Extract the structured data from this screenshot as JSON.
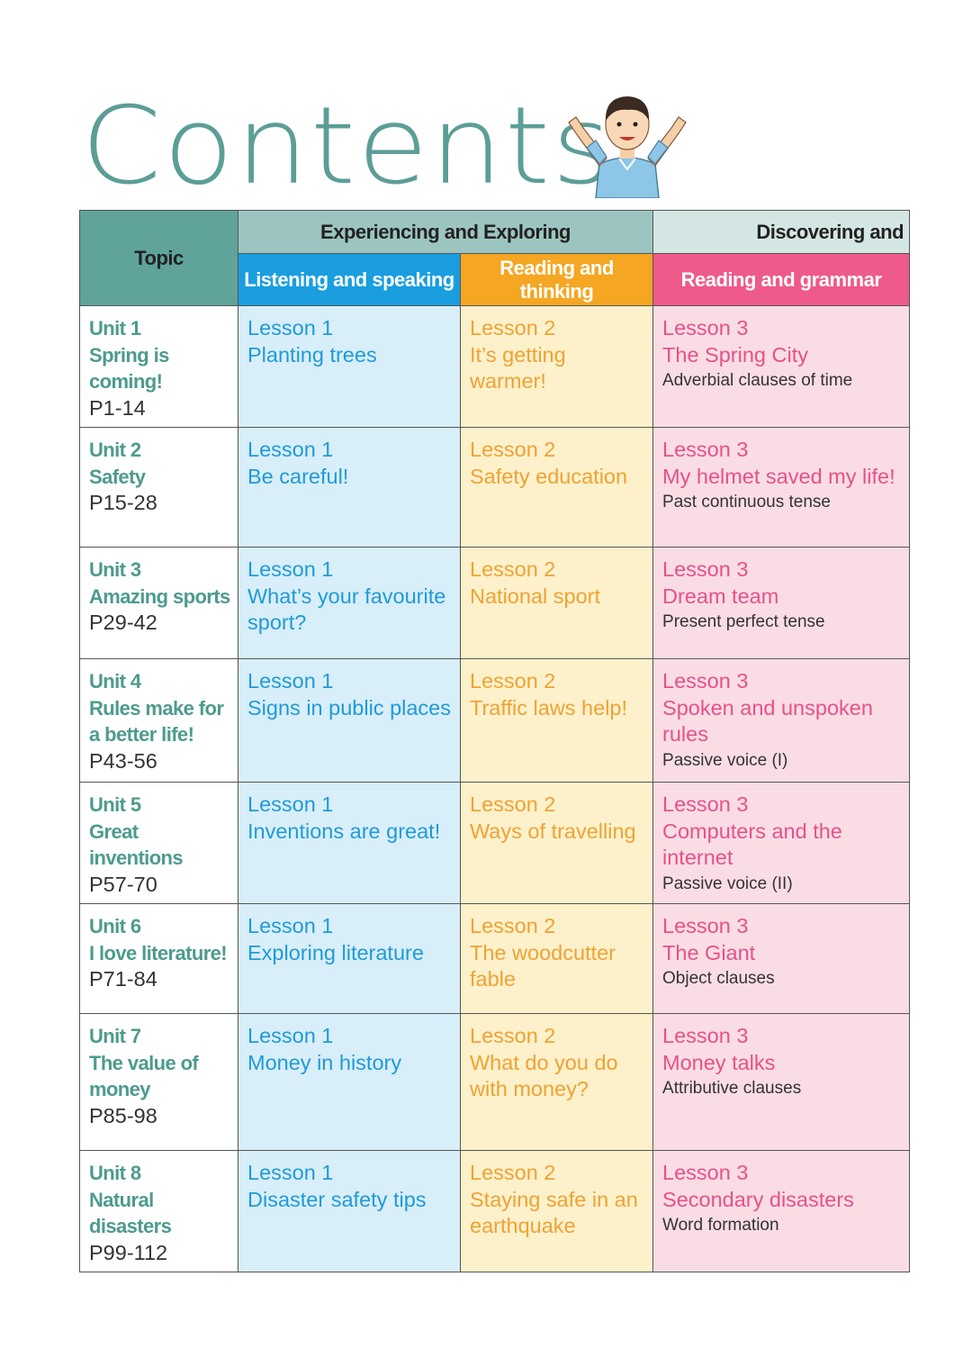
{
  "title": "Contents",
  "table": {
    "header": {
      "topic": "Topic",
      "group1": "Experiencing and Exploring",
      "group2": "Discovering and",
      "columns": [
        "Listening and speaking",
        "Reading and thinking",
        "Reading and grammar"
      ]
    },
    "rows": [
      {
        "unit": "Unit 1",
        "topic": "Spring is coming!",
        "pages": "P1-14",
        "listening": {
          "lesson": "Lesson 1",
          "title": "Planting trees"
        },
        "reading": {
          "lesson": "Lesson 2",
          "title": "It’s getting warmer!"
        },
        "grammar": {
          "lesson": "Lesson 3",
          "title": "The Spring City",
          "note": "Adverbial clauses of time"
        }
      },
      {
        "unit": "Unit 2",
        "topic": "Safety",
        "pages": "P15-28",
        "listening": {
          "lesson": "Lesson 1",
          "title": "Be careful!"
        },
        "reading": {
          "lesson": "Lesson 2",
          "title": "Safety education"
        },
        "grammar": {
          "lesson": "Lesson 3",
          "title": "My helmet saved my life!",
          "note": "Past continuous tense"
        }
      },
      {
        "unit": "Unit 3",
        "topic": "Amazing sports",
        "pages": "P29-42",
        "listening": {
          "lesson": "Lesson 1",
          "title": "What’s your favourite sport?"
        },
        "reading": {
          "lesson": "Lesson 2",
          "title": "National sport"
        },
        "grammar": {
          "lesson": "Lesson 3",
          "title": "Dream team",
          "note": "Present perfect tense"
        }
      },
      {
        "unit": "Unit 4",
        "topic": "Rules make for a better life!",
        "pages": "P43-56",
        "listening": {
          "lesson": "Lesson 1",
          "title": "Signs in public places"
        },
        "reading": {
          "lesson": "Lesson 2",
          "title": "Traffic laws help!"
        },
        "grammar": {
          "lesson": "Lesson 3",
          "title": "Spoken and unspoken rules",
          "note": "Passive voice (I)"
        }
      },
      {
        "unit": "Unit 5",
        "topic": "Great inventions",
        "pages": "P57-70",
        "listening": {
          "lesson": "Lesson 1",
          "title": "Inventions are great!"
        },
        "reading": {
          "lesson": "Lesson 2",
          "title": "Ways of travelling"
        },
        "grammar": {
          "lesson": "Lesson 3",
          "title": "Computers and the internet",
          "note": "Passive voice (II)"
        }
      },
      {
        "unit": "Unit 6",
        "topic": "I love literature!",
        "pages": "P71-84",
        "listening": {
          "lesson": "Lesson 1",
          "title": "Exploring literature"
        },
        "reading": {
          "lesson": "Lesson 2",
          "title": "The woodcutter fable"
        },
        "grammar": {
          "lesson": "Lesson 3",
          "title": "The Giant",
          "note": "Object clauses"
        }
      },
      {
        "unit": "Unit 7",
        "topic": "The value of money",
        "pages": "P85-98",
        "listening": {
          "lesson": "Lesson 1",
          "title": "Money in history"
        },
        "reading": {
          "lesson": "Lesson 2",
          "title": "What do you do with money?"
        },
        "grammar": {
          "lesson": "Lesson 3",
          "title": "Money talks",
          "note": "Attributive clauses"
        }
      },
      {
        "unit": "Unit 8",
        "topic": "Natural disasters",
        "pages": "P99-112",
        "listening": {
          "lesson": "Lesson 1",
          "title": "Disaster safety tips"
        },
        "reading": {
          "lesson": "Lesson 2",
          "title": "Staying safe in an earthquake"
        },
        "grammar": {
          "lesson": "Lesson 3",
          "title": "Secondary disasters",
          "note": "Word formation"
        }
      }
    ]
  }
}
